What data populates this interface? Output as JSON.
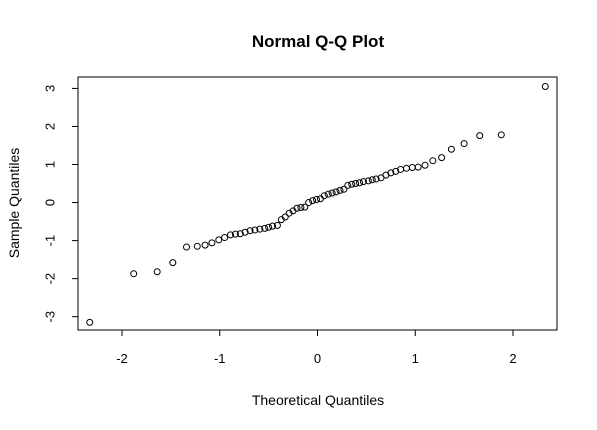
{
  "chart_data": {
    "type": "scatter",
    "title": "Normal Q-Q Plot",
    "xlabel": "Theoretical Quantiles",
    "ylabel": "Sample Quantiles",
    "xlim": [
      -2.45,
      2.45
    ],
    "ylim": [
      -3.35,
      3.3
    ],
    "xticks": [
      -2,
      -1,
      0,
      1,
      2
    ],
    "xtick_labels": [
      "-2",
      "-1",
      "0",
      "1",
      "2"
    ],
    "yticks": [
      -3,
      -2,
      -1,
      0,
      1,
      2,
      3
    ],
    "ytick_labels": [
      "-3",
      "-2",
      "-1",
      "0",
      "1",
      "2",
      "3"
    ],
    "grid": false,
    "legend": "none",
    "marker": "open-circle",
    "x": [
      -2.33,
      -1.88,
      -1.64,
      -1.48,
      -1.34,
      -1.23,
      -1.15,
      -1.08,
      -1.01,
      -0.95,
      -0.89,
      -0.84,
      -0.79,
      -0.74,
      -0.69,
      -0.64,
      -0.59,
      -0.54,
      -0.5,
      -0.46,
      -0.41,
      -0.37,
      -0.33,
      -0.29,
      -0.25,
      -0.21,
      -0.17,
      -0.13,
      -0.09,
      -0.05,
      -0.01,
      0.03,
      0.07,
      0.11,
      0.15,
      0.19,
      0.23,
      0.27,
      0.31,
      0.35,
      0.39,
      0.43,
      0.47,
      0.52,
      0.56,
      0.6,
      0.65,
      0.7,
      0.75,
      0.8,
      0.85,
      0.91,
      0.97,
      1.03,
      1.1,
      1.18,
      1.27,
      1.37,
      1.5,
      1.66,
      1.88,
      2.33
    ],
    "y": [
      -3.15,
      -1.87,
      -1.82,
      -1.58,
      -1.17,
      -1.15,
      -1.12,
      -1.06,
      -0.98,
      -0.92,
      -0.85,
      -0.83,
      -0.82,
      -0.78,
      -0.74,
      -0.72,
      -0.7,
      -0.68,
      -0.65,
      -0.62,
      -0.6,
      -0.45,
      -0.38,
      -0.28,
      -0.22,
      -0.15,
      -0.13,
      -0.12,
      0.0,
      0.05,
      0.08,
      0.1,
      0.18,
      0.22,
      0.25,
      0.28,
      0.32,
      0.35,
      0.45,
      0.48,
      0.5,
      0.52,
      0.55,
      0.57,
      0.6,
      0.62,
      0.65,
      0.72,
      0.78,
      0.82,
      0.87,
      0.9,
      0.92,
      0.93,
      0.98,
      1.1,
      1.18,
      1.4,
      1.55,
      1.76,
      1.78,
      3.05
    ]
  }
}
